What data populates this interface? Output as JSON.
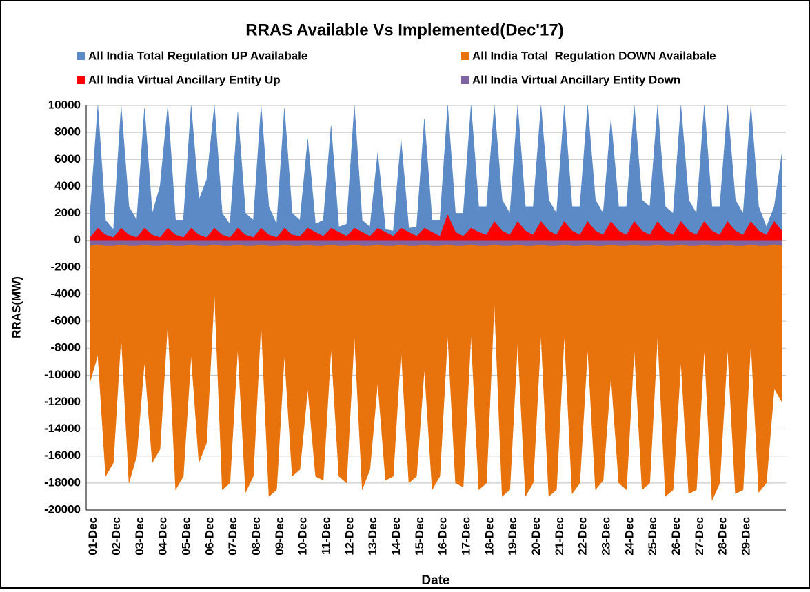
{
  "chart_data": {
    "type": "area",
    "title": "RRAS Available Vs Implemented(Dec'17)",
    "x_label": "Date",
    "y_label": "RRAS(MW)",
    "categories": [
      "01-Dec",
      null,
      null,
      "02-Dec",
      null,
      null,
      "03-Dec",
      null,
      null,
      "04-Dec",
      null,
      null,
      "05-Dec",
      null,
      null,
      "06-Dec",
      null,
      null,
      "07-Dec",
      null,
      null,
      "08-Dec",
      null,
      null,
      "09-Dec",
      null,
      null,
      "10-Dec",
      null,
      null,
      "11-Dec",
      null,
      null,
      "12-Dec",
      null,
      null,
      "13-Dec",
      null,
      null,
      "14-Dec",
      null,
      null,
      "15-Dec",
      null,
      null,
      "16-Dec",
      null,
      null,
      "17-Dec",
      null,
      null,
      "18-Dec",
      null,
      null,
      "19-Dec",
      null,
      null,
      "20-Dec",
      null,
      null,
      "21-Dec",
      null,
      null,
      "22-Dec",
      null,
      null,
      "23-Dec",
      null,
      null,
      "24-Dec",
      null,
      null,
      "25-Dec",
      null,
      null,
      "26-Dec",
      null,
      null,
      "27-Dec",
      null,
      null,
      "28-Dec",
      null,
      null,
      "29-Dec",
      null,
      null,
      null,
      null,
      null
    ],
    "series": [
      {
        "name": "All India Total Regulation UP Availabale",
        "color": "#5b8ac6",
        "values": [
          2000,
          10000,
          1500,
          800,
          10000,
          2500,
          1500,
          9800,
          2000,
          4000,
          10000,
          1500,
          1500,
          10000,
          3000,
          4500,
          10000,
          2000,
          1200,
          9500,
          2000,
          1500,
          10000,
          2500,
          1200,
          9800,
          2000,
          1500,
          7500,
          1200,
          1500,
          8500,
          1000,
          1200,
          10000,
          1500,
          1000,
          6500,
          800,
          700,
          7500,
          900,
          1000,
          9000,
          1500,
          1500,
          10000,
          2000,
          2000,
          10000,
          2500,
          2500,
          10000,
          3000,
          2000,
          10000,
          2500,
          2500,
          10000,
          3000,
          2000,
          10000,
          2500,
          2500,
          10000,
          3000,
          2000,
          9000,
          2500,
          2500,
          10000,
          3000,
          2500,
          10000,
          2500,
          2000,
          10000,
          3000,
          2000,
          10000,
          2500,
          2500,
          10000,
          3000,
          2000,
          10000,
          2500,
          1000,
          2500,
          6500
        ]
      },
      {
        "name": "All India Total  Regulation DOWN Availabale",
        "color": "#e8720c",
        "values": [
          -10500,
          -8500,
          -17500,
          -16500,
          -7000,
          -18000,
          -16000,
          -9000,
          -16500,
          -15500,
          -6000,
          -18500,
          -17500,
          -8500,
          -16500,
          -15000,
          -3800,
          -18500,
          -18000,
          -8000,
          -18700,
          -17500,
          -6000,
          -19000,
          -18500,
          -8500,
          -17500,
          -17000,
          -11000,
          -17500,
          -17800,
          -8000,
          -17500,
          -18000,
          -7000,
          -18500,
          -17000,
          -10500,
          -17800,
          -17500,
          -8000,
          -18000,
          -17500,
          -9500,
          -18500,
          -17500,
          -7000,
          -18000,
          -18300,
          -7000,
          -18500,
          -18000,
          -4500,
          -19000,
          -18500,
          -7500,
          -19000,
          -18000,
          -7000,
          -19000,
          -18500,
          -7000,
          -18800,
          -18000,
          -8000,
          -18500,
          -17800,
          -10000,
          -18000,
          -18500,
          -8000,
          -18500,
          -18000,
          -7000,
          -19000,
          -18500,
          -9000,
          -18800,
          -18500,
          -8000,
          -19300,
          -18000,
          -8000,
          -18800,
          -18500,
          -7500,
          -18700,
          -18000,
          -11000,
          -12000
        ]
      },
      {
        "name": "All India Virtual Ancillary Entity Up",
        "color": "#ff0000",
        "values": [
          200,
          900,
          400,
          200,
          900,
          400,
          200,
          900,
          400,
          200,
          900,
          400,
          200,
          900,
          400,
          200,
          900,
          400,
          200,
          900,
          400,
          200,
          900,
          400,
          200,
          900,
          400,
          300,
          900,
          600,
          300,
          900,
          600,
          300,
          900,
          600,
          300,
          900,
          600,
          300,
          900,
          600,
          300,
          900,
          600,
          300,
          1900,
          600,
          300,
          900,
          600,
          400,
          1400,
          700,
          400,
          1400,
          700,
          400,
          1400,
          700,
          400,
          1400,
          700,
          400,
          1400,
          700,
          400,
          1400,
          700,
          400,
          1400,
          700,
          400,
          1400,
          700,
          400,
          1400,
          700,
          400,
          1400,
          700,
          400,
          1400,
          700,
          400,
          1400,
          700,
          400,
          1400,
          700
        ]
      },
      {
        "name": "All India Virtual Ancillary Entity Down",
        "color": "#8064a2",
        "values": [
          -400,
          -300,
          -400,
          -400,
          -300,
          -400,
          -400,
          -300,
          -400,
          -400,
          -300,
          -400,
          -400,
          -300,
          -400,
          -400,
          -300,
          -400,
          -400,
          -300,
          -400,
          -400,
          -300,
          -400,
          -400,
          -300,
          -400,
          -400,
          -300,
          -400,
          -400,
          -300,
          -400,
          -400,
          -300,
          -400,
          -400,
          -300,
          -400,
          -400,
          -300,
          -400,
          -400,
          -300,
          -400,
          -400,
          -300,
          -400,
          -400,
          -300,
          -400,
          -400,
          -300,
          -400,
          -400,
          -300,
          -400,
          -400,
          -300,
          -400,
          -400,
          -300,
          -400,
          -400,
          -300,
          -400,
          -400,
          -300,
          -400,
          -400,
          -300,
          -400,
          -400,
          -300,
          -400,
          -400,
          -300,
          -400,
          -400,
          -300,
          -400,
          -400,
          -300,
          -400,
          -400,
          -300,
          -400,
          -400,
          -300,
          -400
        ]
      }
    ],
    "ylim": [
      -20000,
      10000
    ],
    "yticks": [
      -20000,
      -18000,
      -16000,
      -14000,
      -12000,
      -10000,
      -8000,
      -6000,
      -4000,
      -2000,
      0,
      2000,
      4000,
      6000,
      8000,
      10000
    ],
    "grid": true
  }
}
